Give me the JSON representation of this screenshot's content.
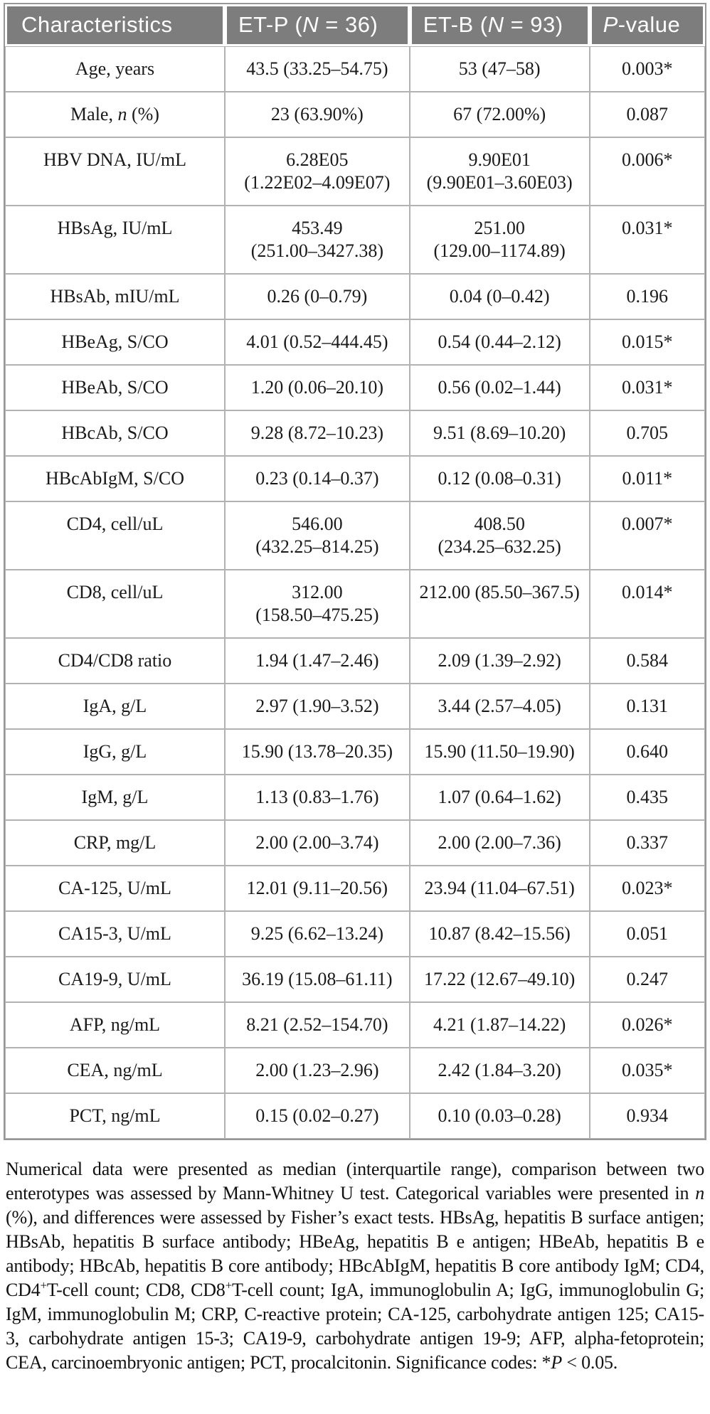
{
  "colors": {
    "header_background": "#7d7d7d",
    "header_text": "#ffffff",
    "cell_border": "#b2b2b2",
    "outer_border": "#979797",
    "body_text": "#1a1a1a"
  },
  "table": {
    "header": {
      "col1": "Characteristics",
      "col2_prefix": "ET-P (",
      "col2_italic": "N",
      "col2_suffix": " = 36)",
      "col3_prefix": "ET-B (",
      "col3_italic": "N",
      "col3_suffix": " = 93)",
      "col4_italic": "P",
      "col4_suffix": "-value"
    },
    "rows": [
      {
        "label": "Age, years",
        "et_p": "43.5 (33.25–54.75)",
        "et_b": "53 (47–58)",
        "p": "0.003*"
      },
      {
        "label": [
          {
            "t": "Male, "
          },
          {
            "t": "n",
            "i": true
          },
          {
            "t": " (%)"
          }
        ],
        "et_p": "23 (63.90%)",
        "et_b": "67 (72.00%)",
        "p": "0.087"
      },
      {
        "label": "HBV DNA, IU/mL",
        "et_p": "6.28E05\n(1.22E02–4.09E07)",
        "et_b": "9.90E01\n(9.90E01–3.60E03)",
        "p": "0.006*"
      },
      {
        "label": "HBsAg, IU/mL",
        "et_p": "453.49\n(251.00–3427.38)",
        "et_b": "251.00\n(129.00–1174.89)",
        "p": "0.031*"
      },
      {
        "label": "HBsAb, mIU/mL",
        "et_p": "0.26 (0–0.79)",
        "et_b": "0.04 (0–0.42)",
        "p": "0.196"
      },
      {
        "label": "HBeAg, S/CO",
        "et_p": "4.01 (0.52–444.45)",
        "et_b": "0.54 (0.44–2.12)",
        "p": "0.015*"
      },
      {
        "label": "HBeAb, S/CO",
        "et_p": "1.20 (0.06–20.10)",
        "et_b": "0.56 (0.02–1.44)",
        "p": "0.031*"
      },
      {
        "label": "HBcAb, S/CO",
        "et_p": "9.28 (8.72–10.23)",
        "et_b": "9.51 (8.69–10.20)",
        "p": "0.705"
      },
      {
        "label": "HBcAbIgM, S/CO",
        "et_p": "0.23 (0.14–0.37)",
        "et_b": "0.12 (0.08–0.31)",
        "p": "0.011*"
      },
      {
        "label": "CD4, cell/uL",
        "et_p": "546.00\n(432.25–814.25)",
        "et_b": "408.50\n(234.25–632.25)",
        "p": "0.007*"
      },
      {
        "label": "CD8, cell/uL",
        "et_p": "312.00\n(158.50–475.25)",
        "et_b": "212.00 (85.50–367.5)",
        "p": "0.014*"
      },
      {
        "label": "CD4/CD8 ratio",
        "et_p": "1.94 (1.47–2.46)",
        "et_b": "2.09 (1.39–2.92)",
        "p": "0.584"
      },
      {
        "label": "IgA, g/L",
        "et_p": "2.97 (1.90–3.52)",
        "et_b": "3.44 (2.57–4.05)",
        "p": "0.131"
      },
      {
        "label": "IgG, g/L",
        "et_p": "15.90 (13.78–20.35)",
        "et_b": "15.90 (11.50–19.90)",
        "p": "0.640"
      },
      {
        "label": "IgM, g/L",
        "et_p": "1.13 (0.83–1.76)",
        "et_b": "1.07 (0.64–1.62)",
        "p": "0.435"
      },
      {
        "label": "CRP, mg/L",
        "et_p": "2.00 (2.00–3.74)",
        "et_b": "2.00 (2.00–7.36)",
        "p": "0.337"
      },
      {
        "label": "CA-125, U/mL",
        "et_p": "12.01 (9.11–20.56)",
        "et_b": "23.94 (11.04–67.51)",
        "p": "0.023*"
      },
      {
        "label": "CA15-3, U/mL",
        "et_p": "9.25 (6.62–13.24)",
        "et_b": "10.87 (8.42–15.56)",
        "p": "0.051"
      },
      {
        "label": "CA19-9, U/mL",
        "et_p": "36.19 (15.08–61.11)",
        "et_b": "17.22 (12.67–49.10)",
        "p": "0.247"
      },
      {
        "label": "AFP, ng/mL",
        "et_p": "8.21 (2.52–154.70)",
        "et_b": "4.21 (1.87–14.22)",
        "p": "0.026*"
      },
      {
        "label": "CEA, ng/mL",
        "et_p": "2.00 (1.23–2.96)",
        "et_b": "2.42 (1.84–3.20)",
        "p": "0.035*"
      },
      {
        "label": "PCT, ng/mL",
        "et_p": "0.15 (0.02–0.27)",
        "et_b": "0.10 (0.03–0.28)",
        "p": "0.934"
      }
    ]
  },
  "footnote": {
    "segments": [
      {
        "t": "Numerical data were presented as median (interquartile range), comparison between two enterotypes was assessed by Mann-Whitney U test. Categorical variables were presented in "
      },
      {
        "t": "n",
        "i": true
      },
      {
        "t": " (%), and differences were assessed by Fisher’s exact tests. HBsAg, hepatitis B surface antigen; HBsAb, hepatitis B surface antibody; HBeAg, hepatitis B e antigen; HBeAb, hepatitis B e antibody; HBcAb, hepatitis B core antibody; HBcAbIgM, hepatitis B core antibody IgM; CD4, CD4"
      },
      {
        "t": "+",
        "sup": true
      },
      {
        "t": "T-cell count; CD8, CD8"
      },
      {
        "t": "+",
        "sup": true
      },
      {
        "t": "T-cell count; IgA, immunoglobulin A; IgG, immunoglobulin G; IgM, immunoglobulin M; CRP, C-reactive protein; CA-125, carbohydrate antigen 125; CA15-3, carbohydrate antigen 15-3; CA19-9, carbohydrate antigen 19-9; AFP, alpha-fetoprotein; CEA, carcinoembryonic antigen; PCT, procalcitonin. Significance codes: *"
      },
      {
        "t": "P",
        "i": true
      },
      {
        "t": " < 0.05."
      }
    ]
  }
}
